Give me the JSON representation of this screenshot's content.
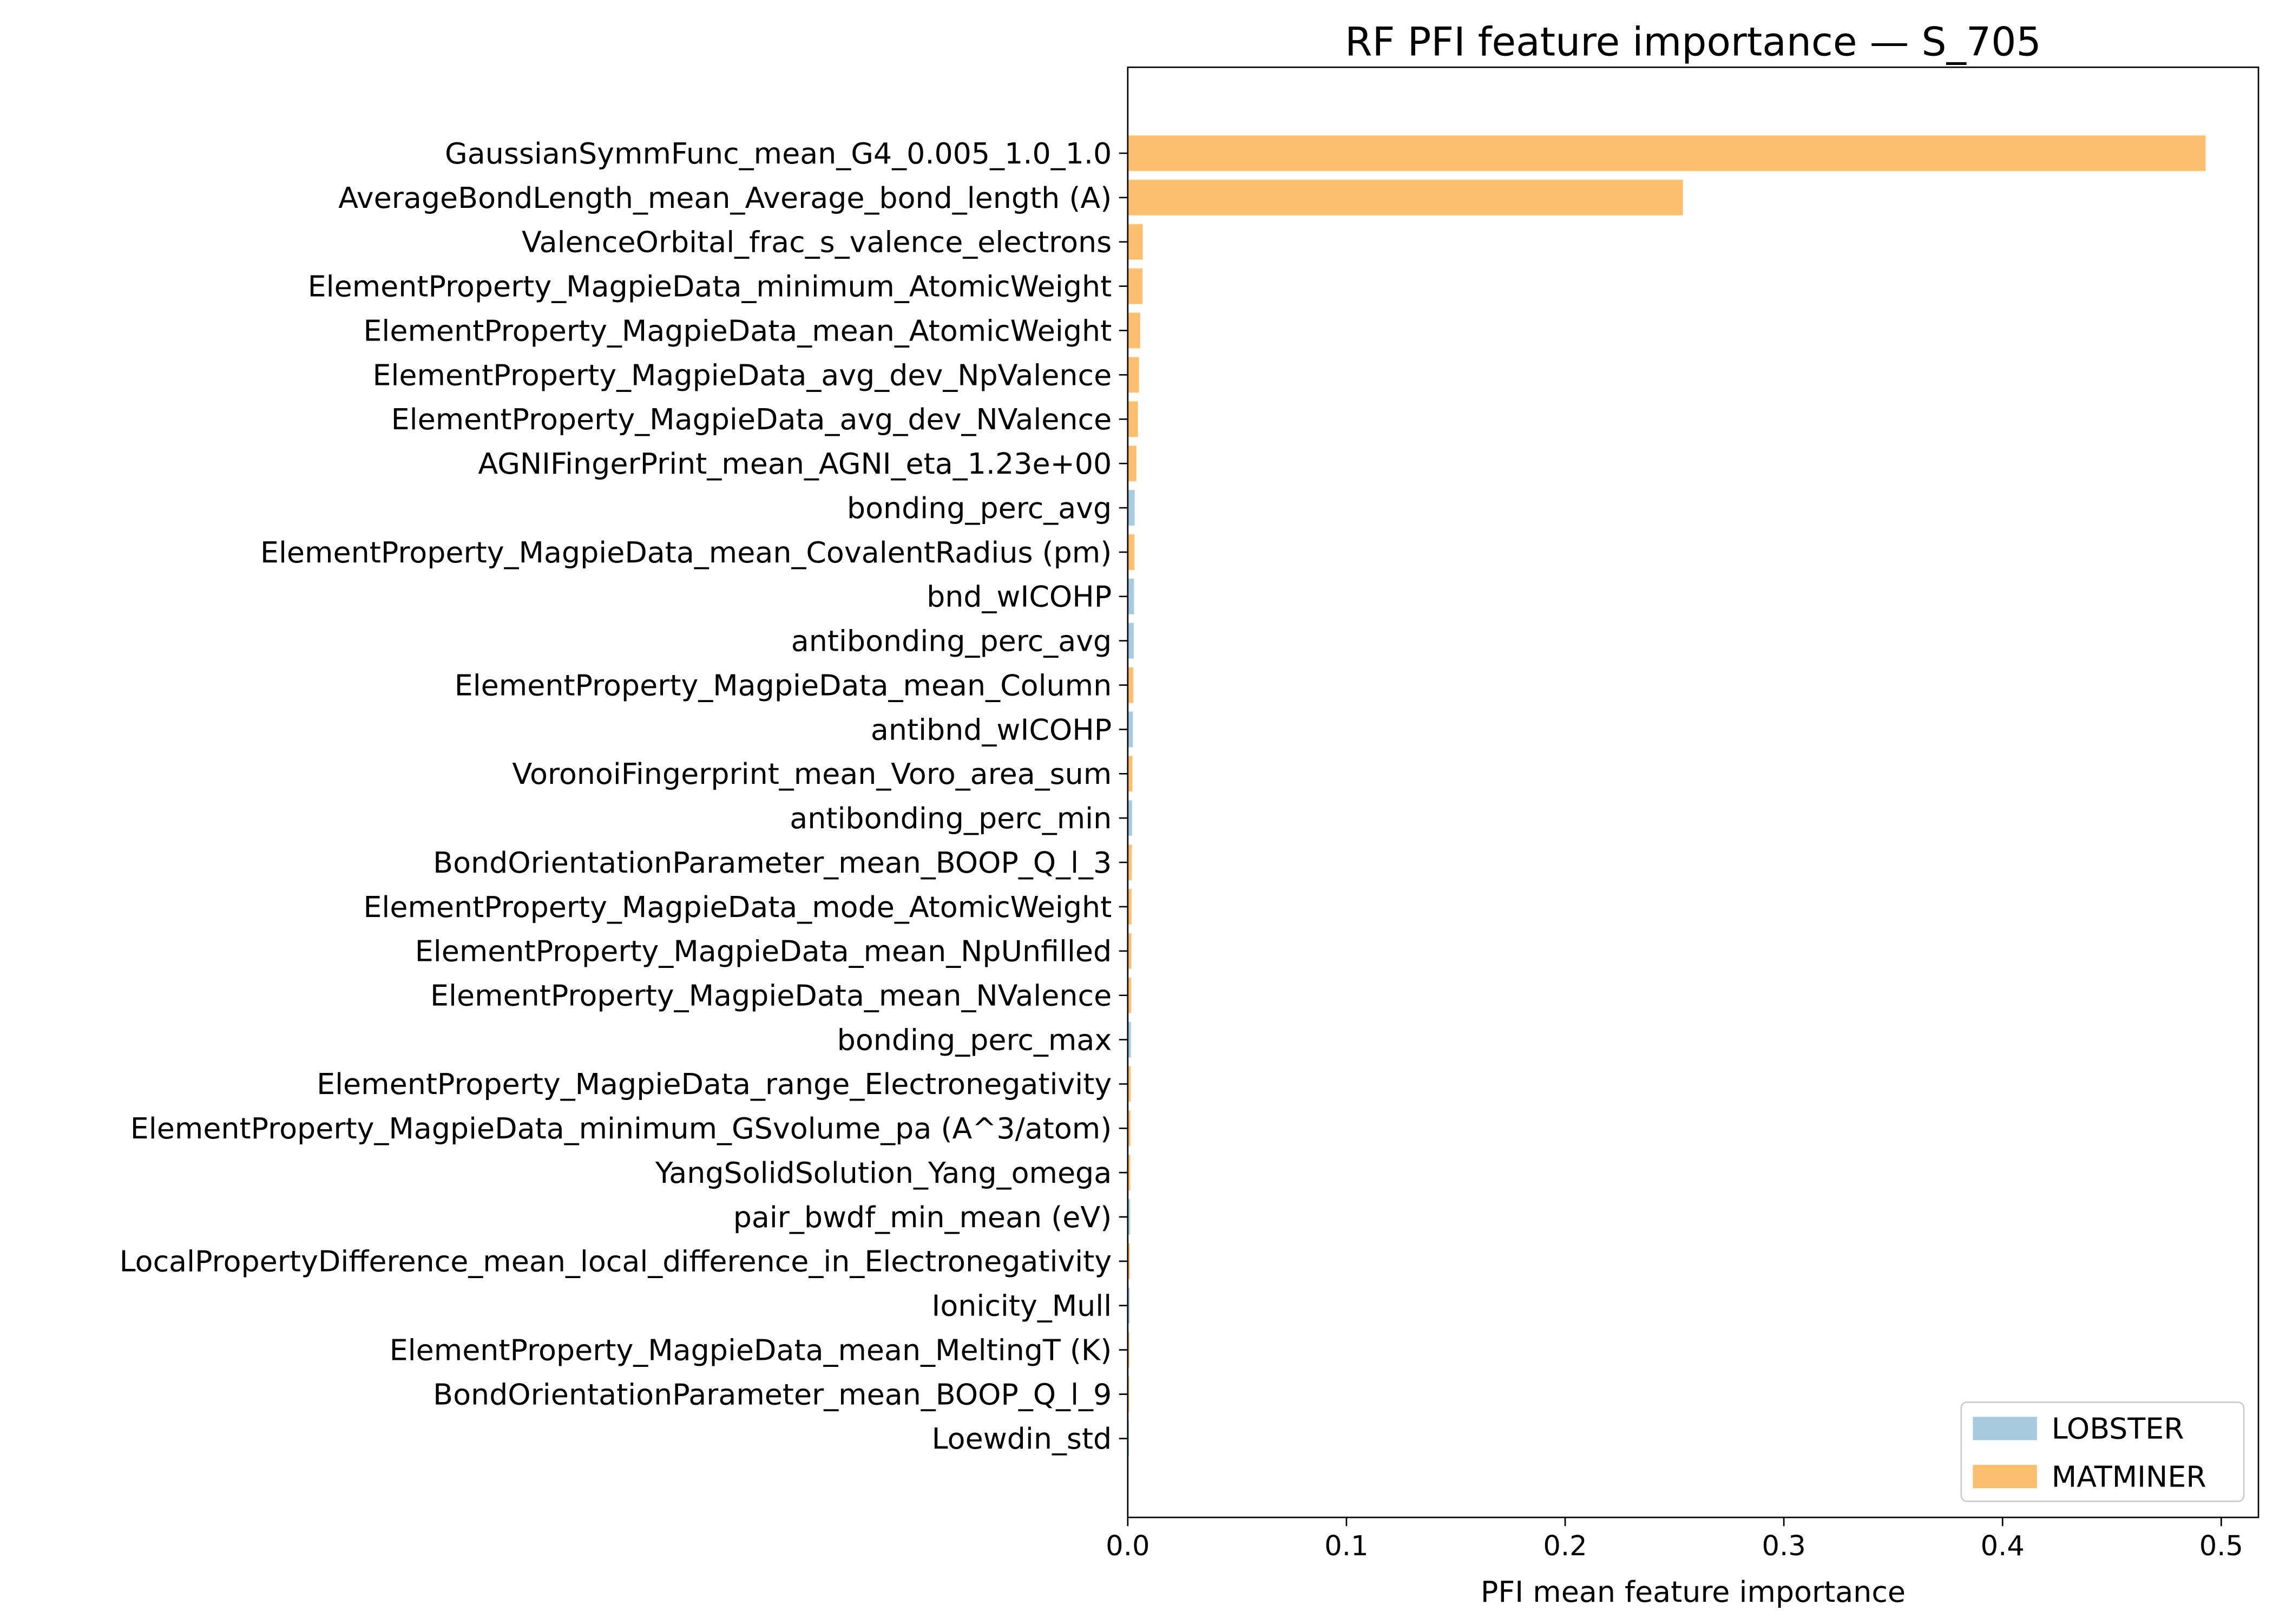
{
  "chart_data": {
    "type": "barh",
    "title": "RF PFI feature importance — S_705",
    "x_label": "PFI mean feature importance",
    "categories": [
      "GaussianSymmFunc_mean_G4_0.005_1.0_1.0",
      "AverageBondLength_mean_Average_bond_length (A)",
      "ValenceOrbital_frac_s_valence_electrons",
      "ElementProperty_MagpieData_minimum_AtomicWeight",
      "ElementProperty_MagpieData_mean_AtomicWeight",
      "ElementProperty_MagpieData_avg_dev_NpValence",
      "ElementProperty_MagpieData_avg_dev_NValence",
      "AGNIFingerPrint_mean_AGNI_eta_1.23e+00",
      "bonding_perc_avg",
      "ElementProperty_MagpieData_mean_CovalentRadius (pm)",
      "bnd_wICOHP",
      "antibonding_perc_avg",
      "ElementProperty_MagpieData_mean_Column",
      "antibnd_wICOHP",
      "VoronoiFingerprint_mean_Voro_area_sum",
      "antibonding_perc_min",
      "BondOrientationParameter_mean_BOOP_Q_l_3",
      "ElementProperty_MagpieData_mode_AtomicWeight",
      "ElementProperty_MagpieData_mean_NpUnfilled",
      "ElementProperty_MagpieData_mean_NValence",
      "bonding_perc_max",
      "ElementProperty_MagpieData_range_Electronegativity",
      "ElementProperty_MagpieData_minimum_GSvolume_pa (A^3/atom)",
      "YangSolidSolution_Yang_omega",
      "pair_bwdf_min_mean (eV)",
      "LocalPropertyDifference_mean_local_difference_in_Electronegativity",
      "Ionicity_Mull",
      "ElementProperty_MagpieData_mean_MeltingT (K)",
      "BondOrientationParameter_mean_BOOP_Q_l_9",
      "Loewdin_std"
    ],
    "series": [
      {
        "name": "LOBSTER",
        "color": "#a6cbe0",
        "values": [
          null,
          null,
          null,
          null,
          null,
          null,
          null,
          null,
          0.003,
          null,
          0.0027,
          0.0026,
          null,
          0.0022,
          null,
          0.0018,
          null,
          null,
          null,
          null,
          0.0013,
          null,
          null,
          null,
          0.0009,
          null,
          0.0007,
          null,
          null,
          0.0004
        ]
      },
      {
        "name": "MATMINER",
        "color": "#fdbf6f",
        "values": [
          0.4927,
          0.2537,
          0.0067,
          0.0066,
          0.0055,
          0.005,
          0.0045,
          0.0038,
          null,
          0.0029,
          null,
          null,
          0.0024,
          null,
          0.002,
          null,
          0.0017,
          0.0016,
          0.0015,
          0.0014,
          null,
          0.0012,
          0.0011,
          0.001,
          null,
          0.0008,
          null,
          0.0006,
          0.0005,
          null
        ]
      }
    ],
    "xlim": [
      0,
      0.517
    ],
    "xticks": [
      {
        "value": 0,
        "label": "0.0"
      },
      0.1,
      0.2,
      0.3,
      0.4,
      0.5
    ],
    "legend": "lower right"
  }
}
